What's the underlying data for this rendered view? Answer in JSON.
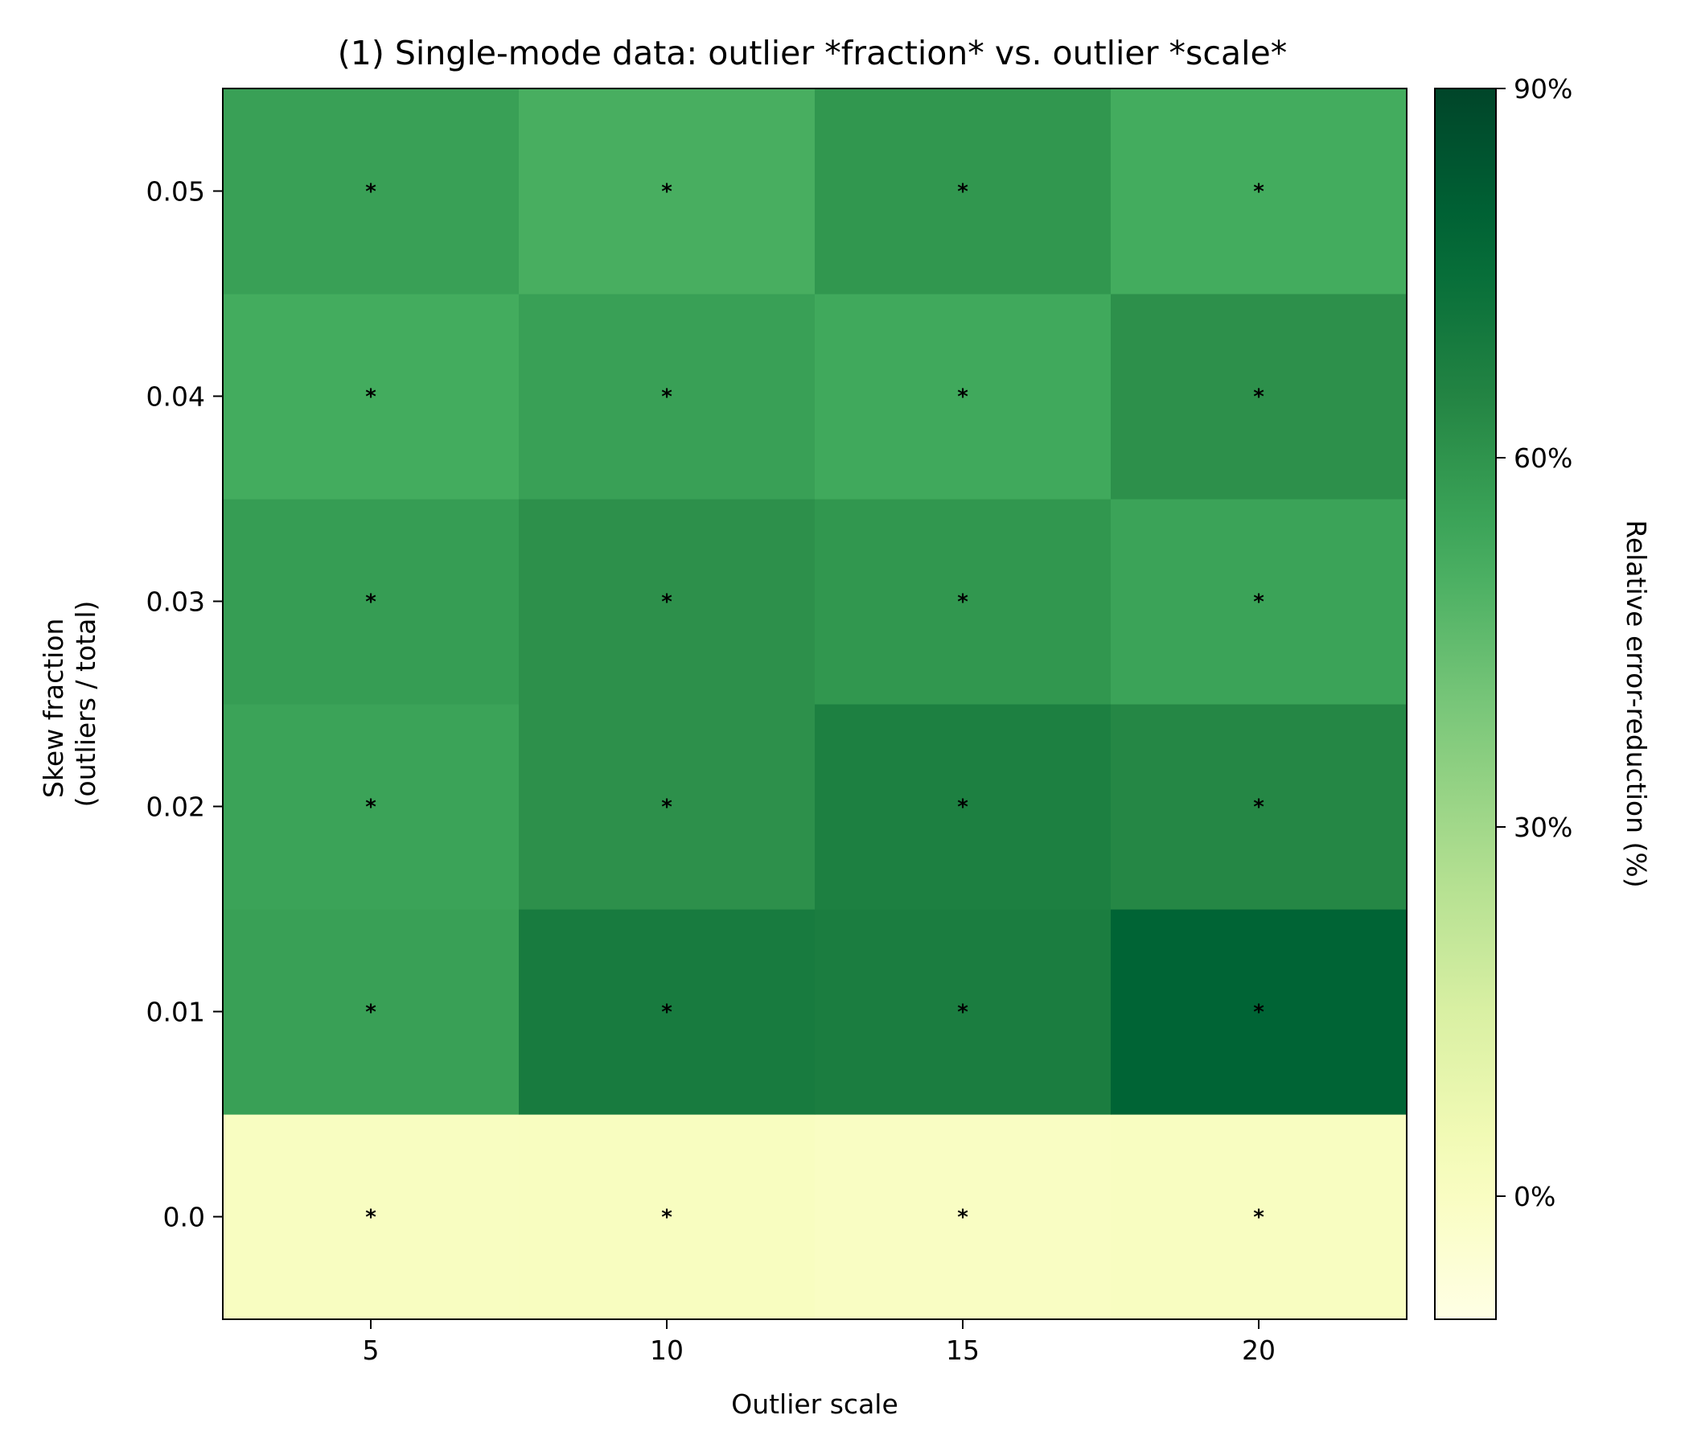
{
  "chart_data": {
    "type": "heatmap",
    "title": "(1)  Single-mode data: outlier *fraction* vs. outlier *scale*",
    "xlabel": "Outlier scale",
    "ylabel_lines": [
      "Skew fraction",
      "(outliers / total)"
    ],
    "x_categories": [
      "5",
      "10",
      "15",
      "20"
    ],
    "y_categories": [
      "0.0",
      "0.01",
      "0.02",
      "0.03",
      "0.04",
      "0.05"
    ],
    "values": [
      [
        0.3,
        0.4,
        -0.2,
        0.3
      ],
      [
        56,
        69,
        68,
        79
      ],
      [
        55,
        61,
        67,
        64
      ],
      [
        57,
        61,
        59,
        55
      ],
      [
        52,
        56,
        53,
        61
      ],
      [
        56,
        51,
        59,
        52
      ]
    ],
    "marker": "*",
    "colormap": "YlGn",
    "color_range": [
      -10,
      90
    ],
    "colorbar": {
      "label": "Relative error-reduction (%)",
      "ticks": [
        0,
        30,
        60,
        90
      ],
      "tick_labels": [
        "0%",
        "30%",
        "60%",
        "90%"
      ]
    },
    "colors": {
      "low": "#ffffe5",
      "high": "#004529",
      "marker": "#000000"
    }
  }
}
